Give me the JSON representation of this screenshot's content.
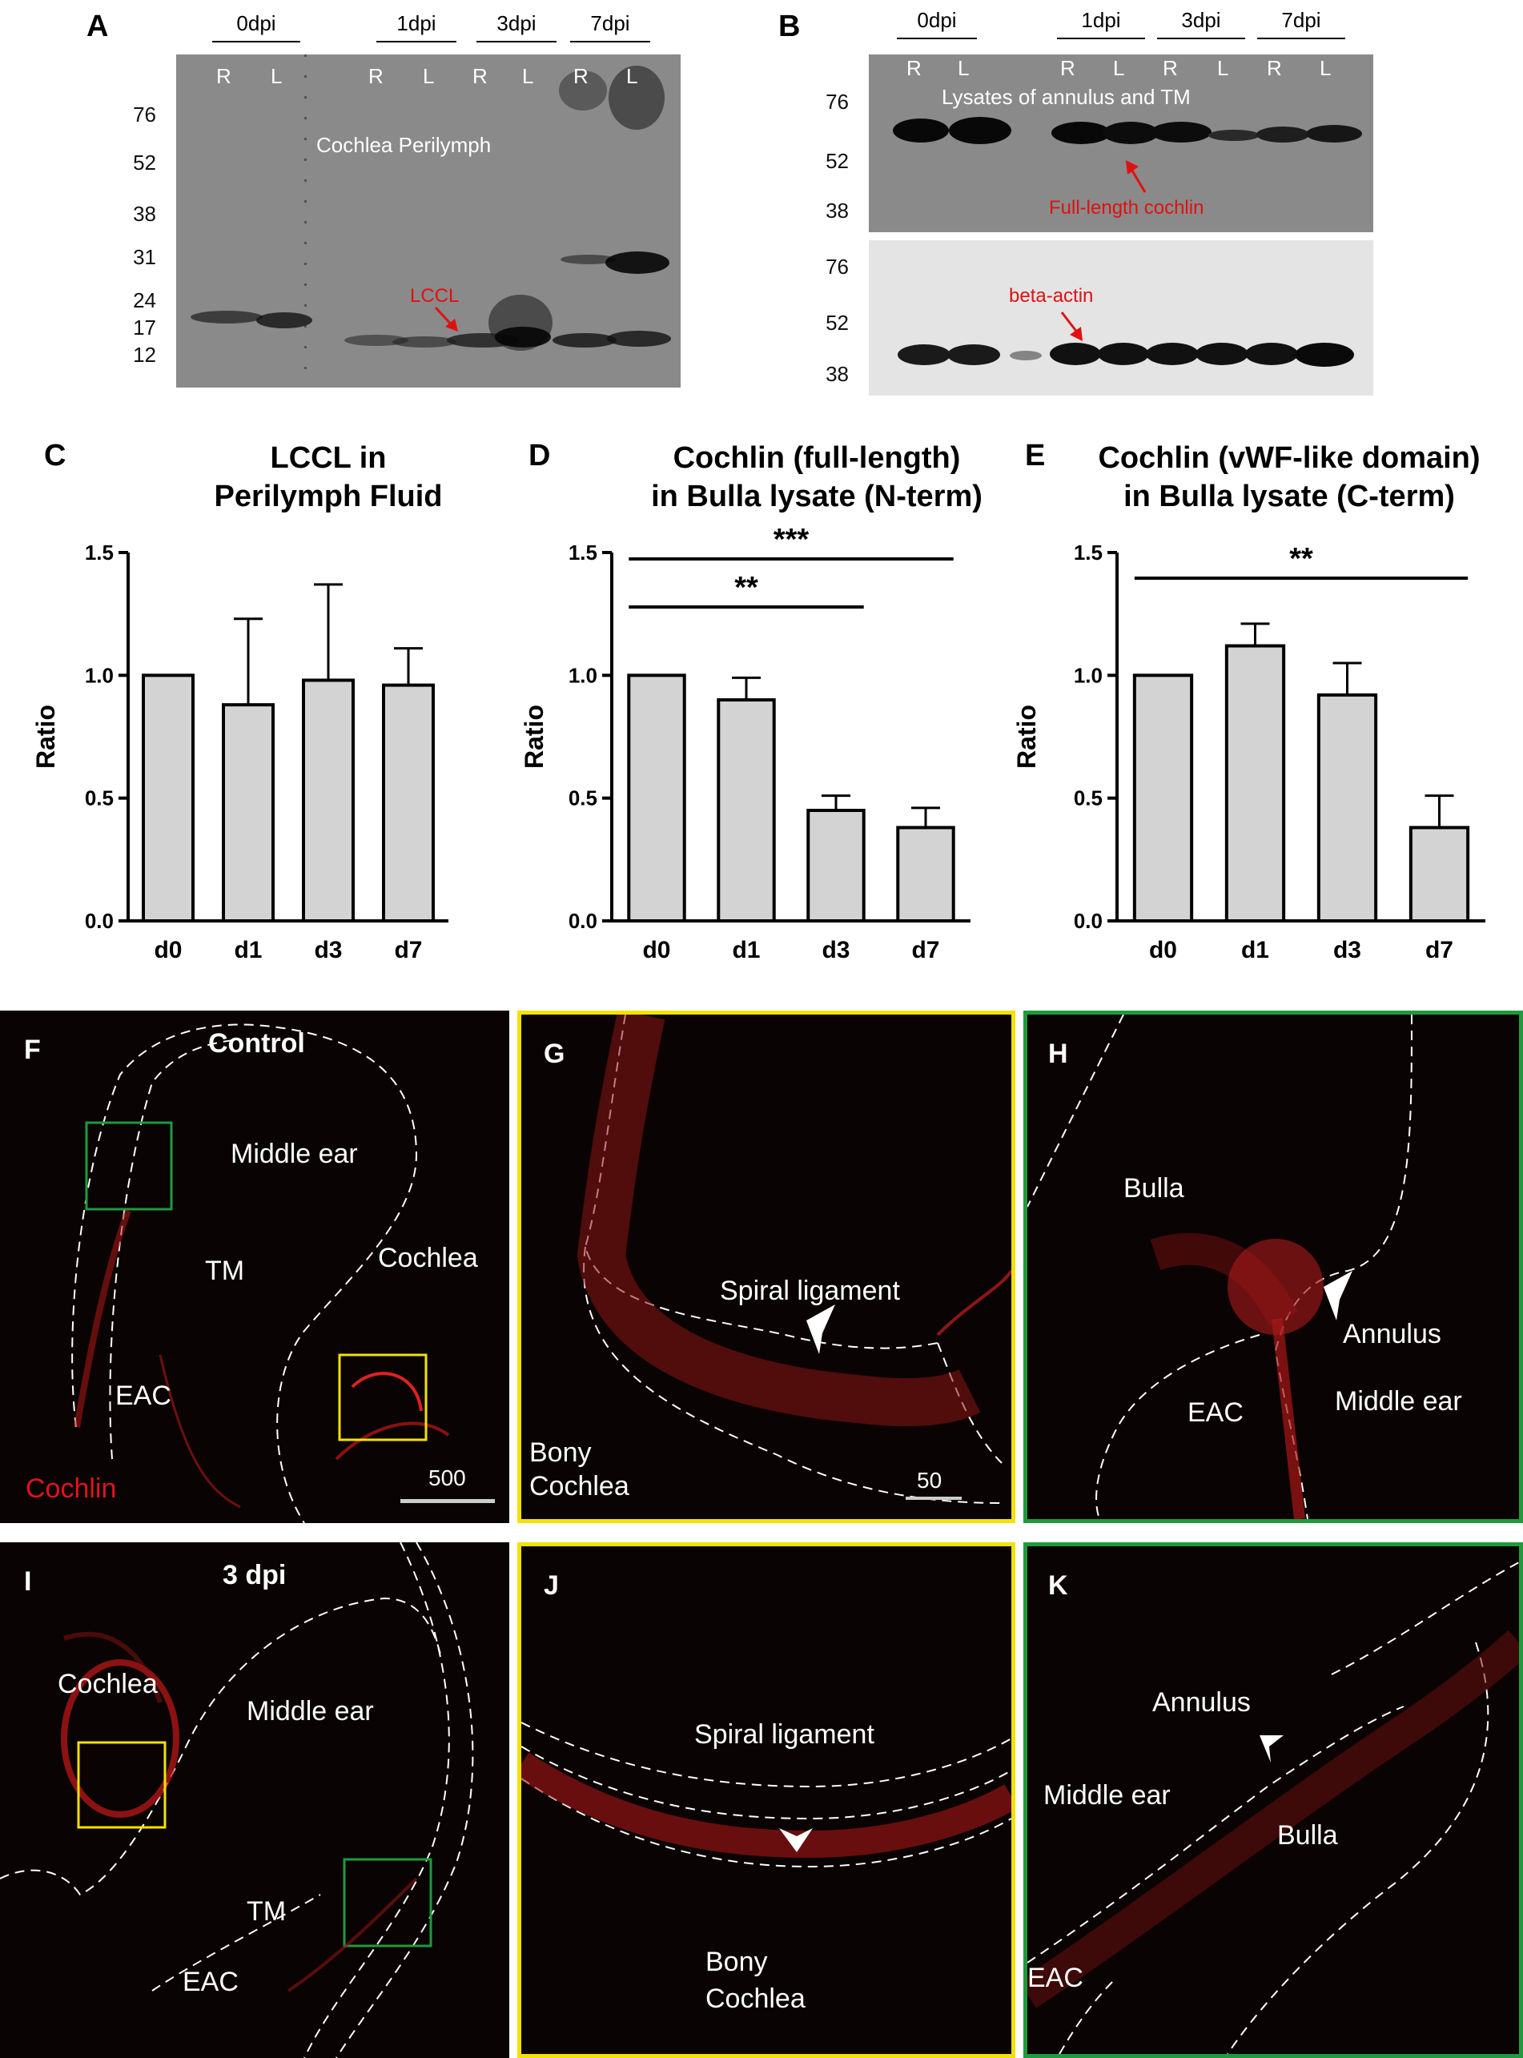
{
  "panels": {
    "A": {
      "letter": "A",
      "groups": [
        "0dpi",
        "1dpi",
        "3dpi",
        "7dpi"
      ],
      "lanes": [
        "R",
        "L",
        "R",
        "L",
        "R",
        "L",
        "R",
        "L"
      ],
      "mw": [
        "76",
        "52",
        "38",
        "31",
        "24",
        "17",
        "12"
      ],
      "inner_label": "Cochlea Perilymph",
      "arrow_label": "LCCL"
    },
    "B": {
      "letter": "B",
      "groups": [
        "0dpi",
        "1dpi",
        "3dpi",
        "7dpi"
      ],
      "lanes": [
        "R",
        "L",
        "R",
        "L",
        "R",
        "L",
        "R",
        "L"
      ],
      "mw_top": [
        "76",
        "52",
        "38"
      ],
      "mw_bottom": [
        "76",
        "52",
        "38"
      ],
      "inner_label": "Lysates of annulus and TM",
      "arrow_label_top": "Full-length cochlin",
      "arrow_label_bottom": "beta-actin"
    },
    "F": {
      "letter": "F",
      "title": "Control",
      "labels": [
        "Middle ear",
        "TM",
        "Cochlea",
        "EAC"
      ],
      "stain": "Cochlin",
      "scale": "500"
    },
    "G": {
      "letter": "G",
      "labels": [
        "Spiral ligament",
        "Bony",
        "Cochlea"
      ],
      "scale": "50"
    },
    "H": {
      "letter": "H",
      "labels": [
        "Bulla",
        "Annulus",
        "EAC",
        "Middle ear"
      ]
    },
    "I": {
      "letter": "I",
      "title": "3 dpi",
      "labels": [
        "Cochlea",
        "Middle ear",
        "TM",
        "EAC"
      ]
    },
    "J": {
      "letter": "J",
      "labels": [
        "Spiral ligament",
        "Bony",
        "Cochlea"
      ]
    },
    "K": {
      "letter": "K",
      "labels": [
        "Annulus",
        "Middle ear",
        "Bulla",
        "EAC"
      ]
    }
  },
  "colors": {
    "bar_fill": "#d3d3d3",
    "red_text": "#e01010",
    "yellow_frame": "#f2e200",
    "green_frame": "#1f9a3c"
  },
  "chart_data": [
    {
      "letter": "C",
      "type": "bar",
      "title": [
        "LCCL in",
        "Perilymph Fluid"
      ],
      "ylabel": "Ratio",
      "categories": [
        "d0",
        "d1",
        "d3",
        "d7"
      ],
      "values": [
        1.0,
        0.88,
        0.98,
        0.96
      ],
      "errors": [
        0,
        0.35,
        0.39,
        0.15
      ],
      "ylim": [
        0,
        1.5
      ],
      "yticks": [
        "0.0",
        "0.5",
        "1.0",
        "1.5"
      ],
      "significance": []
    },
    {
      "letter": "D",
      "type": "bar",
      "title": [
        "Cochlin  (full-length)",
        "in Bulla lysate (N-term)"
      ],
      "ylabel": "Ratio",
      "categories": [
        "d0",
        "d1",
        "d3",
        "d7"
      ],
      "values": [
        1.0,
        0.9,
        0.45,
        0.38
      ],
      "errors": [
        0,
        0.09,
        0.06,
        0.08
      ],
      "ylim": [
        0,
        1.5
      ],
      "yticks": [
        "0.0",
        "0.5",
        "1.0",
        "1.5"
      ],
      "significance": [
        {
          "from": 0,
          "to": 3,
          "label": "***"
        },
        {
          "from": 0,
          "to": 2,
          "label": "**"
        }
      ]
    },
    {
      "letter": "E",
      "type": "bar",
      "title": [
        "Cochlin  (vWF-like domain)",
        "in Bulla lysate  (C-term)"
      ],
      "ylabel": "Ratio",
      "categories": [
        "d0",
        "d1",
        "d3",
        "d7"
      ],
      "values": [
        1.0,
        1.12,
        0.92,
        0.38
      ],
      "errors": [
        0,
        0.09,
        0.13,
        0.13
      ],
      "ylim": [
        0,
        1.5
      ],
      "yticks": [
        "0.0",
        "0.5",
        "1.0",
        "1.5"
      ],
      "significance": [
        {
          "from": 0,
          "to": 3,
          "label": "**"
        }
      ]
    }
  ]
}
